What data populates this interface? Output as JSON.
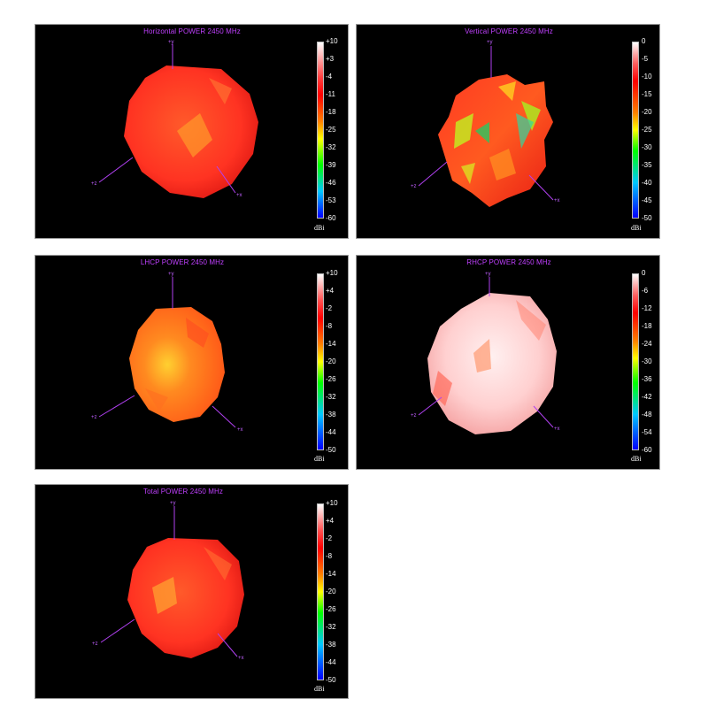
{
  "colors": {
    "title": "#c040ff",
    "axis": "#b040f0",
    "background": "#000000",
    "scale": [
      "#0000ff",
      "#00c8ff",
      "#00ff00",
      "#ffff00",
      "#ff8000",
      "#ff0000",
      "#ffffff"
    ]
  },
  "unit": "dBi",
  "axes": {
    "y": "+y",
    "z": "+z",
    "x": "+x"
  },
  "panels": [
    {
      "title": "Horizontal POWER 2450  MHz",
      "ticks": [
        "+10",
        "+3",
        "-4",
        "-11",
        "-18",
        "-25",
        "-32",
        "-39",
        "-46",
        "-53",
        "-60"
      ],
      "surface": "red"
    },
    {
      "title": "Vertical POWER 2450  MHz",
      "ticks": [
        "0",
        "-5",
        "-10",
        "-15",
        "-20",
        "-25",
        "-30",
        "-35",
        "-40",
        "-45",
        "-50"
      ],
      "surface": "multicolor"
    },
    {
      "title": "LHCP POWER 2450  MHz",
      "ticks": [
        "+10",
        "+4",
        "-2",
        "-8",
        "-14",
        "-20",
        "-26",
        "-32",
        "-38",
        "-44",
        "-50"
      ],
      "surface": "orange"
    },
    {
      "title": "RHCP POWER 2450  MHz",
      "ticks": [
        "0",
        "-6",
        "-12",
        "-18",
        "-24",
        "-30",
        "-36",
        "-42",
        "-48",
        "-54",
        "-60"
      ],
      "surface": "pink"
    },
    {
      "title": "Total POWER 2450  MHz",
      "ticks": [
        "+10",
        "+4",
        "-2",
        "-8",
        "-14",
        "-20",
        "-26",
        "-32",
        "-38",
        "-44",
        "-50"
      ],
      "surface": "red"
    }
  ]
}
